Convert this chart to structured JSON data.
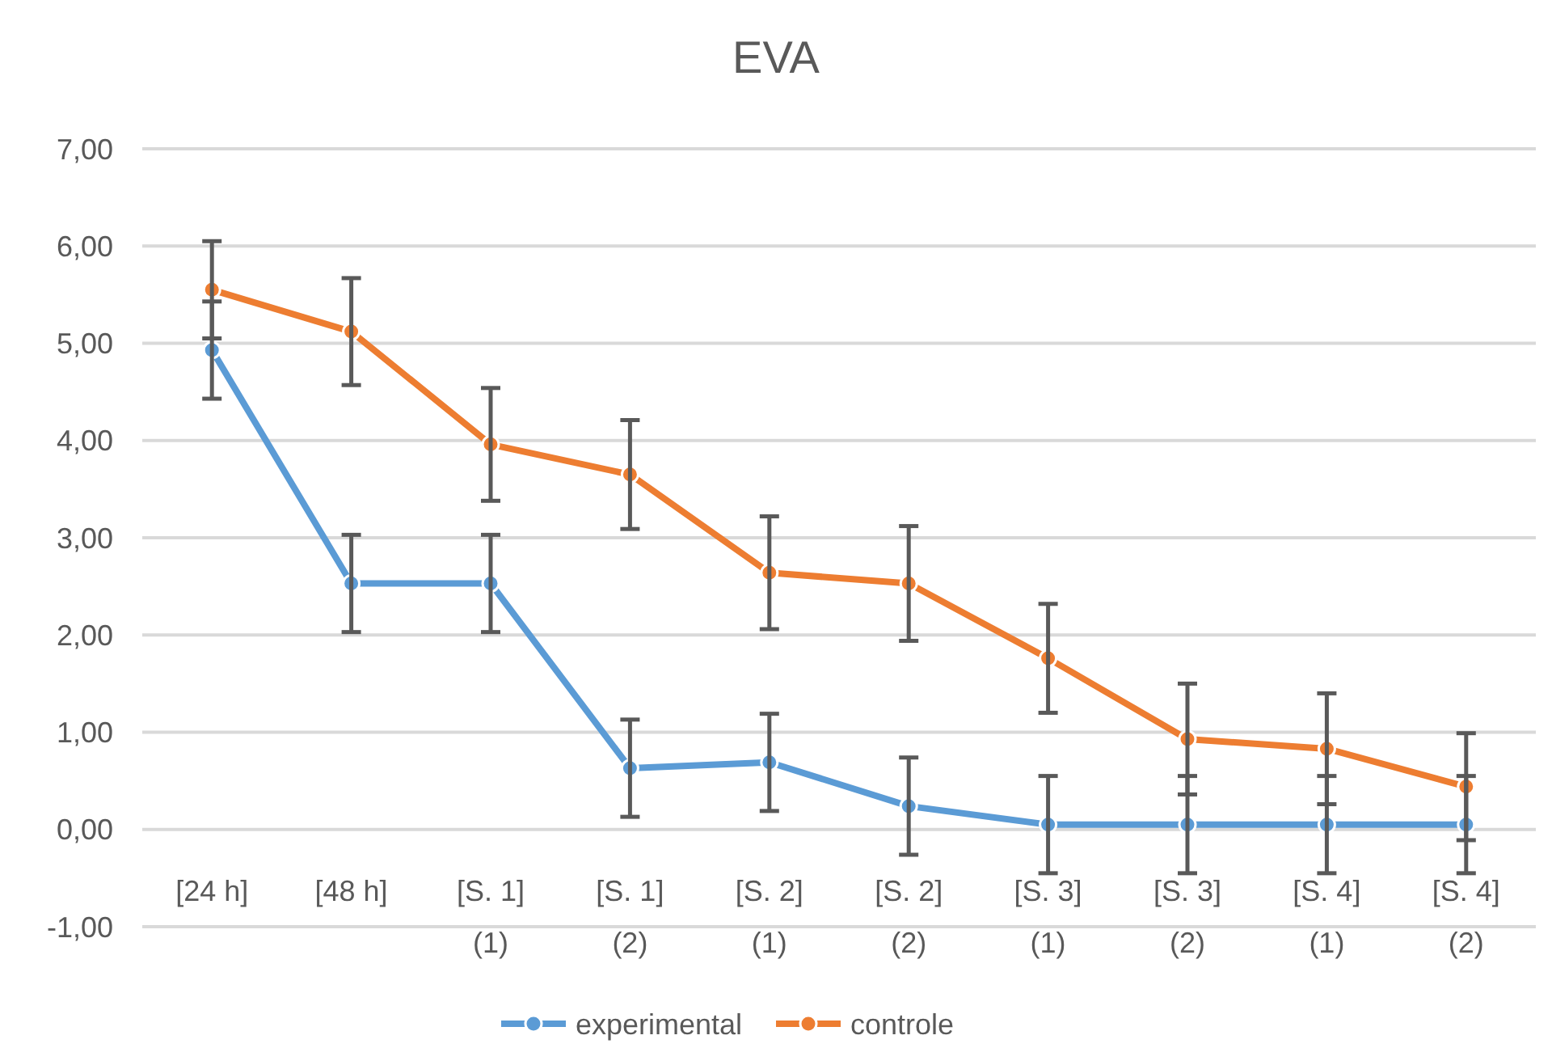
{
  "chart_data": {
    "type": "line",
    "title": "EVA",
    "categories": [
      "[24 h]",
      "[48 h]",
      "[S. 1]\n(1)",
      "[S. 1]\n(2)",
      "[S. 2]\n(1)",
      "[S. 2]\n(2)",
      "[S. 3]\n(1)",
      "[S. 3]\n(2)",
      "[S. 4]\n(1)",
      "[S. 4]\n(2)"
    ],
    "series": [
      {
        "name": "experimental",
        "color": "#5b9bd5",
        "values": [
          4.93,
          2.53,
          2.53,
          0.63,
          0.69,
          0.24,
          0.05,
          0.05,
          0.05,
          0.05
        ],
        "errors": [
          0.5,
          0.5,
          0.5,
          0.5,
          0.5,
          0.5,
          0.5,
          0.5,
          0.5,
          0.5
        ]
      },
      {
        "name": "controle",
        "color": "#ed7d31",
        "values": [
          5.55,
          5.12,
          3.96,
          3.65,
          2.64,
          2.53,
          1.76,
          0.93,
          0.83,
          0.44
        ],
        "errors": [
          0.5,
          0.55,
          0.58,
          0.56,
          0.58,
          0.59,
          0.56,
          0.57,
          0.57,
          0.55
        ]
      }
    ],
    "ylim": [
      -1,
      7
    ],
    "yticks": [
      {
        "value": -1,
        "label": "-1,00"
      },
      {
        "value": 0,
        "label": "0,00"
      },
      {
        "value": 1,
        "label": "1,00"
      },
      {
        "value": 2,
        "label": "2,00"
      },
      {
        "value": 3,
        "label": "3,00"
      },
      {
        "value": 4,
        "label": "4,00"
      },
      {
        "value": 5,
        "label": "5,00"
      },
      {
        "value": 6,
        "label": "6,00"
      },
      {
        "value": 7,
        "label": "7,00"
      }
    ],
    "grid": "y",
    "legend": "bottom",
    "marker": "circle",
    "line_style": "solid"
  }
}
